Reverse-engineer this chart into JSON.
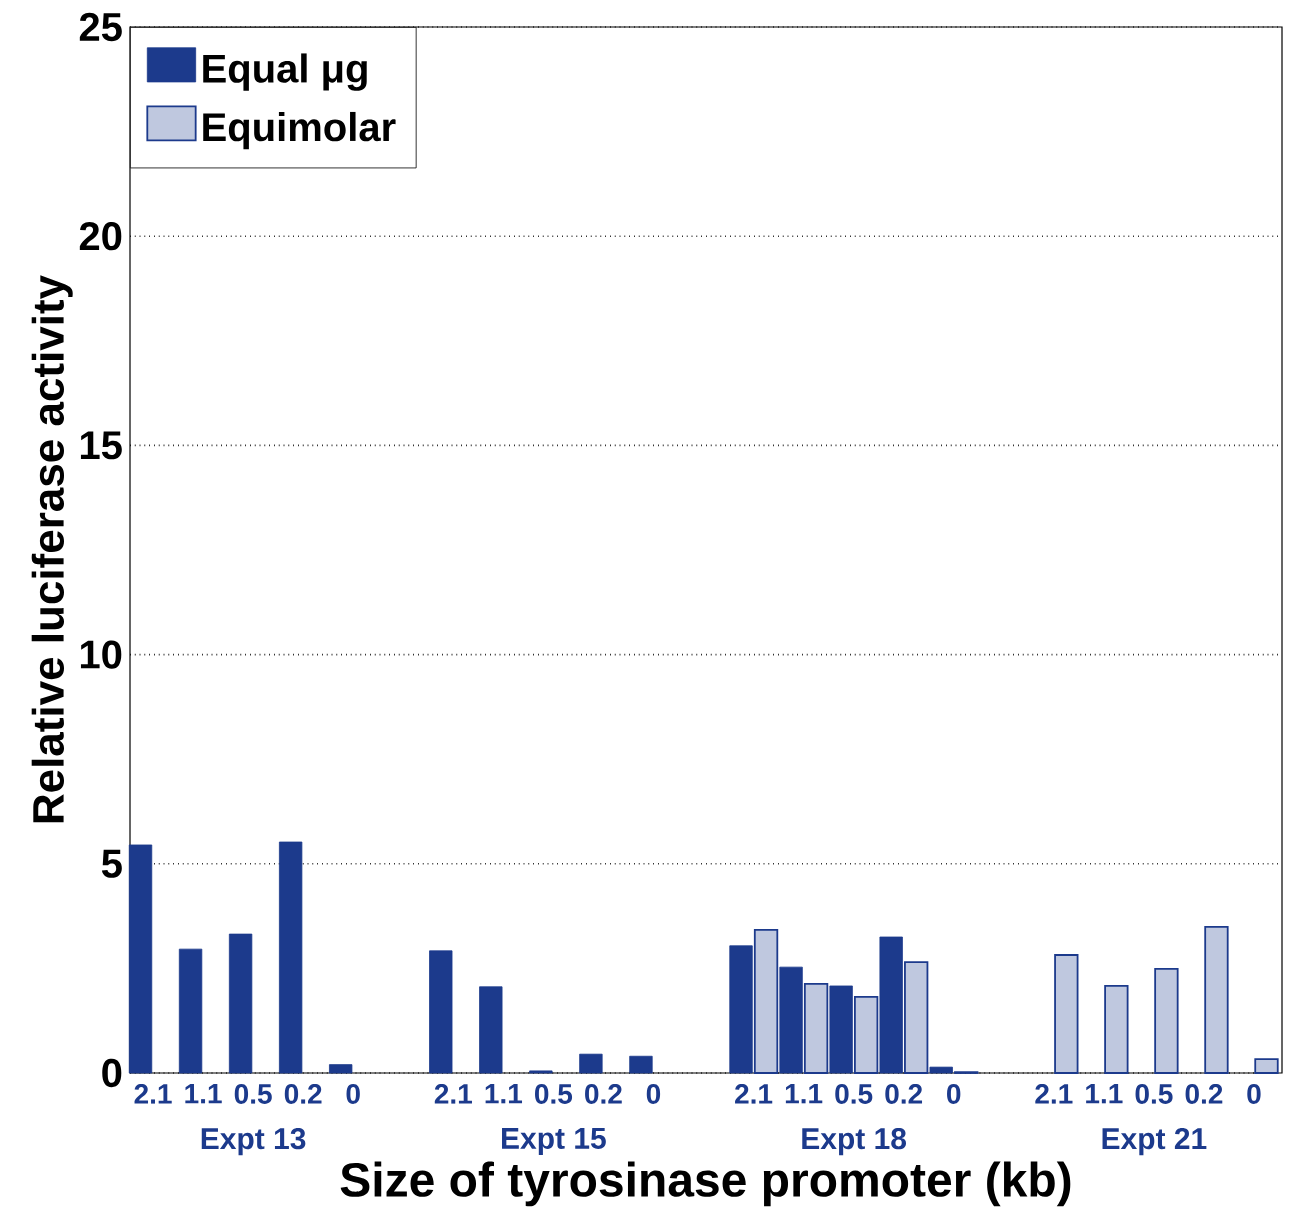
{
  "chart_data": {
    "type": "bar",
    "xlabel": "Size of tyrosinase promoter (kb)",
    "ylabel": "Relative luciferase activity",
    "categories": [
      "2.1",
      "1.1",
      "0.5",
      "0.2",
      "0",
      null,
      "2.1",
      "1.1",
      "0.5",
      "0.2",
      "0",
      null,
      "2.1",
      "1.1",
      "0.5",
      "0.2",
      "0",
      null,
      "2.1",
      "1.1",
      "0.5",
      "0.2",
      "0"
    ],
    "series": [
      {
        "name": "Equal μg",
        "color": "#1c3a8c",
        "values": [
          5.45,
          2.96,
          3.32,
          5.52,
          0.2,
          null,
          2.92,
          2.06,
          0.05,
          0.45,
          0.4,
          null,
          3.04,
          2.53,
          2.08,
          3.25,
          0.14,
          null,
          null,
          null,
          null,
          null,
          null
        ]
      },
      {
        "name": "Equimolar",
        "color": "#1c3a8c",
        "values": [
          null,
          null,
          null,
          null,
          null,
          null,
          null,
          null,
          null,
          null,
          null,
          null,
          3.42,
          2.13,
          1.82,
          2.65,
          0.02,
          null,
          2.82,
          2.08,
          2.49,
          3.49,
          0.33
        ]
      }
    ],
    "annotations": [
      "Expt 13",
      "Expt 15",
      "Expt 18",
      "Expt 21"
    ],
    "ylim": [
      0,
      25
    ],
    "yticks": [
      0,
      5,
      10,
      15,
      20,
      25
    ],
    "grid": "y",
    "legend": "top left"
  }
}
